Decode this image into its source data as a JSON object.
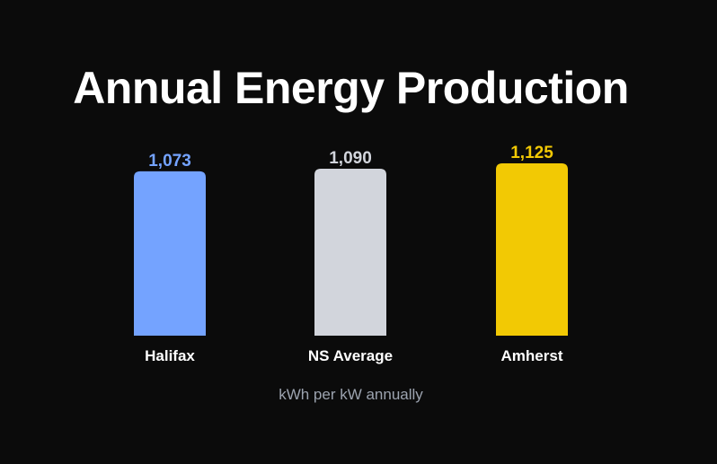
{
  "title": "Annual Energy Production",
  "caption": "kWh per kW annually",
  "chart_data": {
    "type": "bar",
    "title": "Annual Energy Production",
    "ylabel": "kWh per kW annually",
    "categories": [
      "Halifax",
      "NS Average",
      "Amherst"
    ],
    "values": [
      1073,
      1090,
      1125
    ],
    "value_labels": [
      "1,073",
      "1,090",
      "1,125"
    ],
    "colors": [
      "#74a3ff",
      "#d2d5dc",
      "#f2c904"
    ],
    "label_colors": [
      "#74a3ff",
      "#d2d5dc",
      "#f2c904"
    ],
    "ylim": [
      0,
      1125
    ],
    "grid": false,
    "legend": "none"
  }
}
